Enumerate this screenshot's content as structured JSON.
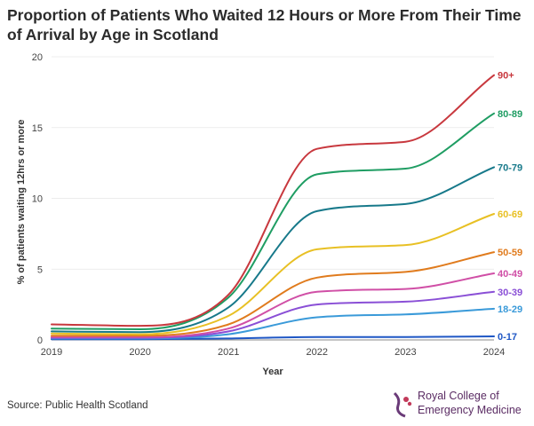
{
  "title": "Proportion of Patients Who Waited 12 Hours or More From Their Time of Arrival by Age in Scotland",
  "source": "Source: Public Health Scotland",
  "brand": {
    "line1": "Royal College of",
    "line2": "Emergency Medicine",
    "color": "#5a2b63"
  },
  "chart_data": {
    "type": "line",
    "title": "Proportion of Patients Who Waited 12 Hours or More From Their Time of Arrival by Age in Scotland",
    "xlabel": "Year",
    "ylabel": "% of patients waiting 12hrs or more",
    "xlim": [
      2019,
      2024
    ],
    "ylim": [
      0,
      20
    ],
    "xticks": [
      "2019",
      "2020",
      "2021",
      "2022",
      "2023",
      "2024"
    ],
    "yticks": [
      "0",
      "5",
      "10",
      "15",
      "20"
    ],
    "grid": "horizontal",
    "x": [
      2019,
      2020,
      2021,
      2022,
      2023,
      2024
    ],
    "series": [
      {
        "name": "0-17",
        "color": "#1f57c5",
        "values": [
          0.05,
          0.05,
          0.1,
          0.2,
          0.2,
          0.25
        ]
      },
      {
        "name": "18-29",
        "color": "#3a9ad9",
        "values": [
          0.1,
          0.1,
          0.4,
          1.6,
          1.8,
          2.2
        ]
      },
      {
        "name": "30-39",
        "color": "#8a4fd6",
        "values": [
          0.15,
          0.15,
          0.6,
          2.5,
          2.7,
          3.4
        ]
      },
      {
        "name": "40-49",
        "color": "#d04fa6",
        "values": [
          0.2,
          0.2,
          0.8,
          3.4,
          3.6,
          4.7
        ]
      },
      {
        "name": "50-59",
        "color": "#e07b1d",
        "values": [
          0.3,
          0.3,
          1.1,
          4.4,
          4.8,
          6.2
        ]
      },
      {
        "name": "60-69",
        "color": "#e8c024",
        "values": [
          0.45,
          0.4,
          1.7,
          6.4,
          6.7,
          8.9
        ]
      },
      {
        "name": "70-79",
        "color": "#17798a",
        "values": [
          0.6,
          0.55,
          2.3,
          9.1,
          9.6,
          12.2
        ]
      },
      {
        "name": "80-89",
        "color": "#1f9d63",
        "values": [
          0.8,
          0.75,
          3.0,
          11.7,
          12.1,
          16.0
        ]
      },
      {
        "name": "90+",
        "color": "#c8383e",
        "values": [
          1.1,
          1.0,
          3.2,
          13.5,
          14.0,
          18.7
        ]
      }
    ]
  }
}
